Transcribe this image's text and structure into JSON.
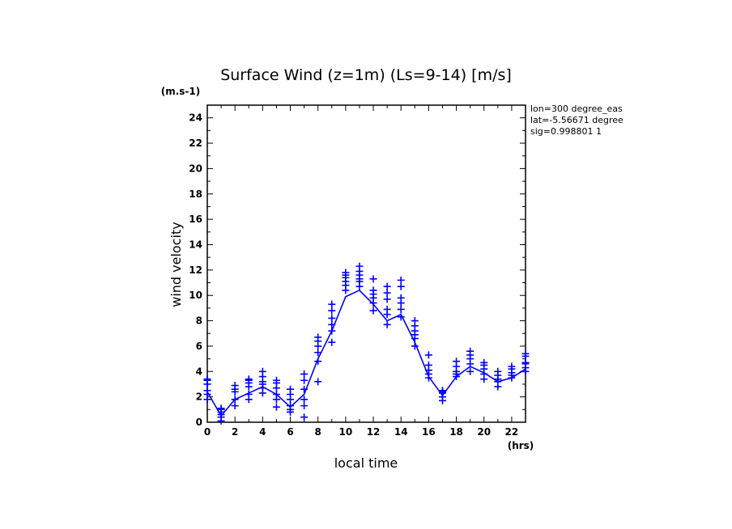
{
  "chart_data": {
    "type": "line",
    "title": "Surface Wind (z=1m) (Ls=9-14) [m/s]",
    "ylabel": "wind velocity",
    "yunit": "(m.s-1)",
    "xlabel": "local time",
    "xunit": "(hrs)",
    "xlim": [
      0,
      23
    ],
    "ylim": [
      0,
      25
    ],
    "xticks": [
      0,
      2,
      4,
      6,
      8,
      10,
      12,
      14,
      16,
      18,
      20,
      22
    ],
    "yticks": [
      0,
      2,
      4,
      6,
      8,
      10,
      12,
      14,
      16,
      18,
      20,
      22,
      24
    ],
    "grid": false,
    "info": [
      "lon=300 degree_eas",
      "lat=-5.56671 degree",
      "sig=0.998801 1"
    ],
    "colors": {
      "series": "#0000ff",
      "axes": "#000000"
    },
    "series": [
      {
        "style": "line",
        "x": [
          0,
          1,
          2,
          3,
          4,
          5,
          6,
          7,
          8,
          9,
          10,
          11,
          12,
          13,
          14,
          15,
          16,
          17,
          18,
          19,
          20,
          21,
          22,
          23
        ],
        "y": [
          2.4,
          0.5,
          1.8,
          2.3,
          2.8,
          2.2,
          1.2,
          2.2,
          5.0,
          7.2,
          9.9,
          10.4,
          9.3,
          8.0,
          8.5,
          6.3,
          3.6,
          2.1,
          3.6,
          4.4,
          3.9,
          3.2,
          3.5,
          4.2
        ]
      },
      {
        "style": "markers",
        "marker": "+",
        "points": [
          {
            "x": 0,
            "y": [
              1.8,
              2.2,
              2.5,
              3.0,
              3.3,
              3.4
            ]
          },
          {
            "x": 1,
            "y": [
              0.1,
              0.4,
              0.6,
              0.8,
              1.0,
              1.1
            ]
          },
          {
            "x": 2,
            "y": [
              1.3,
              1.8,
              2.4,
              2.6,
              2.9
            ]
          },
          {
            "x": 3,
            "y": [
              1.8,
              2.2,
              2.8,
              3.1,
              3.3,
              3.4
            ]
          },
          {
            "x": 4,
            "y": [
              2.3,
              2.7,
              3.0,
              3.2,
              3.6,
              4.0
            ]
          },
          {
            "x": 5,
            "y": [
              1.2,
              1.8,
              2.2,
              2.7,
              3.1,
              3.3
            ]
          },
          {
            "x": 6,
            "y": [
              0.8,
              1.0,
              1.3,
              1.8,
              2.2,
              2.6
            ]
          },
          {
            "x": 7,
            "y": [
              0.4,
              1.3,
              1.8,
              2.6,
              3.3,
              3.8
            ]
          },
          {
            "x": 8,
            "y": [
              3.2,
              4.8,
              5.5,
              6.0,
              6.4,
              6.7
            ]
          },
          {
            "x": 9,
            "y": [
              6.3,
              7.2,
              7.7,
              8.2,
              8.8,
              9.3
            ]
          },
          {
            "x": 10,
            "y": [
              10.4,
              10.8,
              11.1,
              11.4,
              11.6,
              11.8
            ]
          },
          {
            "x": 11,
            "y": [
              10.7,
              11.1,
              11.3,
              11.6,
              11.9,
              12.3
            ]
          },
          {
            "x": 12,
            "y": [
              8.8,
              9.4,
              9.8,
              10.1,
              10.4,
              11.3
            ]
          },
          {
            "x": 13,
            "y": [
              7.7,
              8.5,
              8.9,
              9.7,
              10.2,
              10.7
            ]
          },
          {
            "x": 14,
            "y": [
              8.3,
              8.9,
              9.4,
              9.8,
              10.7,
              11.2
            ]
          },
          {
            "x": 15,
            "y": [
              6.0,
              6.6,
              6.9,
              7.2,
              7.6,
              8.0
            ]
          },
          {
            "x": 16,
            "y": [
              3.5,
              3.8,
              4.1,
              4.5,
              5.3
            ]
          },
          {
            "x": 17,
            "y": [
              1.7,
              2.0,
              2.3,
              2.4,
              2.5
            ]
          },
          {
            "x": 18,
            "y": [
              3.6,
              3.8,
              4.0,
              4.4,
              4.8
            ]
          },
          {
            "x": 19,
            "y": [
              4.0,
              4.6,
              5.0,
              5.3,
              5.6
            ]
          },
          {
            "x": 20,
            "y": [
              3.4,
              3.8,
              4.2,
              4.5,
              4.7
            ]
          },
          {
            "x": 21,
            "y": [
              2.8,
              3.2,
              3.4,
              3.7,
              4.0
            ]
          },
          {
            "x": 22,
            "y": [
              3.5,
              3.7,
              3.9,
              4.2,
              4.4
            ]
          },
          {
            "x": 23,
            "y": [
              4.0,
              4.3,
              4.6,
              4.7,
              5.2,
              5.4
            ]
          }
        ]
      }
    ]
  }
}
